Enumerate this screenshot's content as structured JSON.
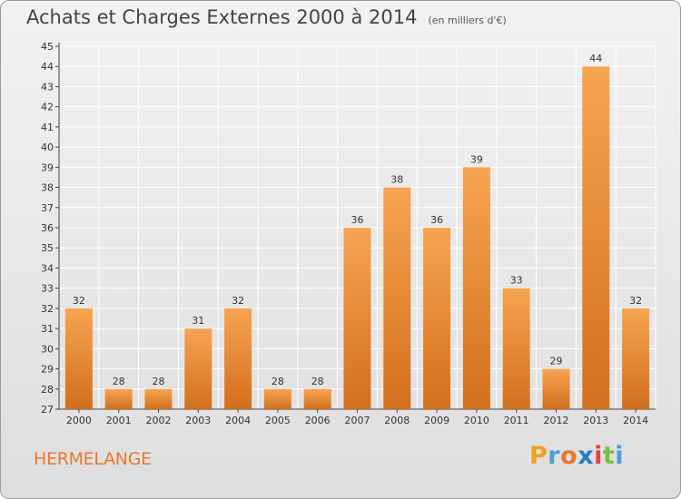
{
  "header": {
    "title": "Achats et Charges Externes 2000 à 2014",
    "unit": "(en milliers d'€)"
  },
  "footer": {
    "place": "HERMELANGE",
    "logo_letters": [
      "P",
      "r",
      "o",
      "x",
      "i",
      "t",
      "i"
    ],
    "logo_colors": [
      "#f0a020",
      "#4aa0d8",
      "#e8772e",
      "#2b7bc0",
      "#e84040",
      "#7cc040",
      "#4aa0d8"
    ]
  },
  "chart_data": {
    "type": "bar",
    "categories": [
      "2000",
      "2001",
      "2002",
      "2003",
      "2004",
      "2005",
      "2006",
      "2007",
      "2008",
      "2009",
      "2010",
      "2011",
      "2012",
      "2013",
      "2014"
    ],
    "values": [
      32,
      28,
      28,
      31,
      32,
      28,
      28,
      36,
      38,
      36,
      39,
      33,
      29,
      44,
      32
    ],
    "title": "Achats et Charges Externes 2000 à 2014",
    "xlabel": "",
    "ylabel": "",
    "ylim": [
      27,
      45
    ],
    "ytick_step": 1,
    "grid": true,
    "bar_color_top": "#f6a452",
    "bar_color_bottom": "#d26f1c"
  }
}
